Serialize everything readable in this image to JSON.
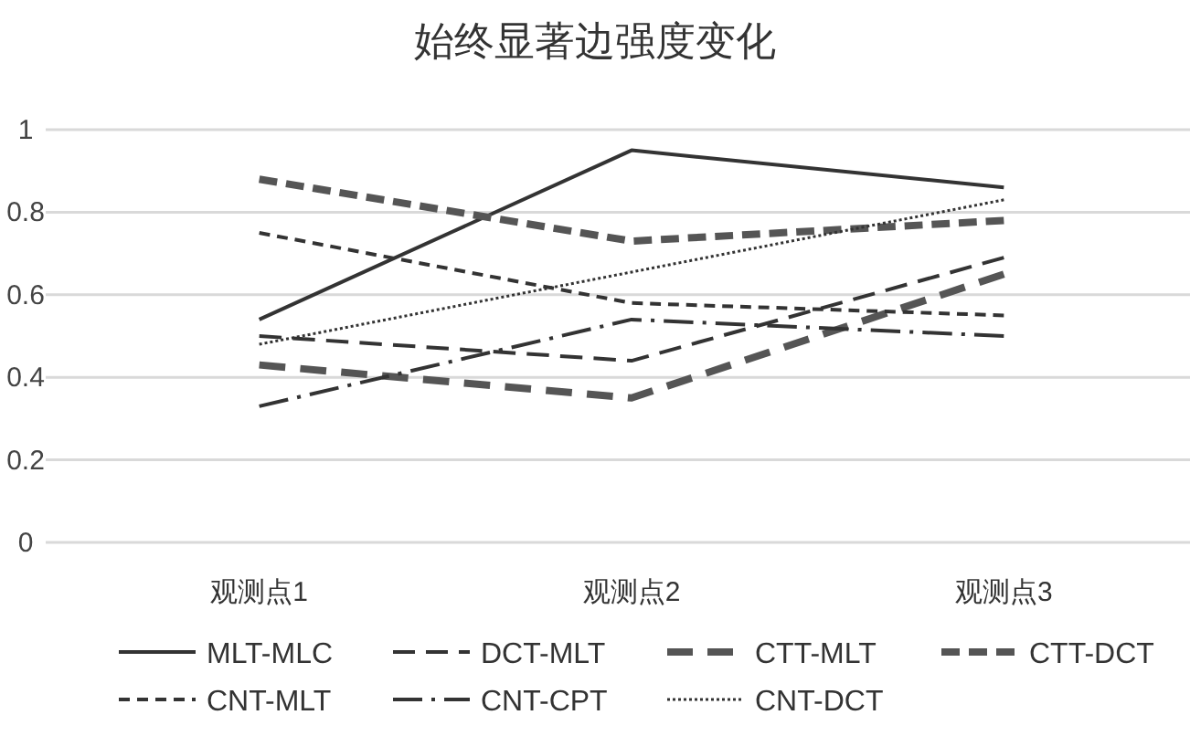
{
  "chart_data": {
    "type": "line",
    "title": "始终显著边强度变化",
    "categories": [
      "观测点1",
      "观测点2",
      "观测点3"
    ],
    "ylim": [
      0,
      1
    ],
    "yticks": [
      0,
      0.2,
      0.4,
      0.6,
      0.8,
      1
    ],
    "grid": "y",
    "legend": "bottom",
    "marker": "none",
    "series": [
      {
        "name": "MLT-MLC",
        "color": "#333333",
        "line_style": "solid",
        "values": [
          0.54,
          0.95,
          0.86
        ]
      },
      {
        "name": "DCT-MLT",
        "color": "#333333",
        "line_style": "dashed",
        "values": [
          0.5,
          0.44,
          0.69
        ]
      },
      {
        "name": "CTT-MLT",
        "color": "#555555",
        "line_style": "dashed",
        "values": [
          0.43,
          0.35,
          0.65
        ]
      },
      {
        "name": "CTT-DCT",
        "color": "#555555",
        "line_style": "dashed",
        "values": [
          0.88,
          0.73,
          0.78
        ]
      },
      {
        "name": "CNT-MLT",
        "color": "#333333",
        "line_style": "dashed",
        "values": [
          0.75,
          0.58,
          0.55
        ]
      },
      {
        "name": "CNT-CPT",
        "color": "#333333",
        "line_style": "dashed",
        "values": [
          0.33,
          0.54,
          0.5
        ]
      },
      {
        "name": "CNT-DCT",
        "color": "#333333",
        "line_style": "dotted",
        "values": [
          0.48,
          0.655,
          0.83
        ]
      }
    ]
  }
}
